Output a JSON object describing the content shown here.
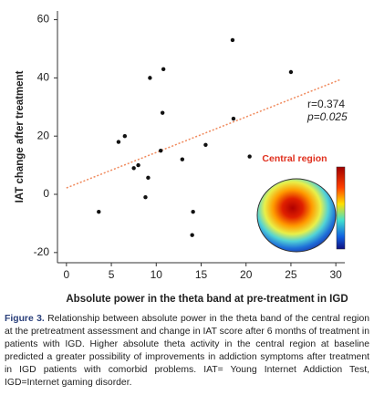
{
  "chart_data": {
    "type": "scatter",
    "y_label": "IAT change after treatment",
    "x_label": "Absolute power in the theta band at pre-treatment in IGD",
    "x": [
      3.6,
      5.8,
      6.5,
      7.5,
      8.0,
      9.1,
      8.8,
      9.3,
      10.8,
      10.7,
      10.5,
      12.9,
      14.1,
      14.0,
      15.5,
      18.5,
      18.6,
      20.4,
      25.0
    ],
    "values": [
      -6,
      18,
      20,
      9,
      10,
      5.7,
      -1,
      40,
      43,
      28,
      15,
      12,
      -6,
      -14,
      17,
      53,
      26,
      13,
      42
    ],
    "color": "#111111",
    "trend_line": {
      "x": [
        0,
        30.5
      ],
      "y": [
        2.2,
        39.4
      ],
      "color": "#f08a5d"
    },
    "xlim": [
      -1,
      31
    ],
    "ylim": [
      -23.5,
      63
    ],
    "xticks": [
      0,
      5,
      10,
      15,
      20,
      25,
      30
    ],
    "yticks": [
      -20,
      0,
      20,
      40,
      60
    ],
    "annotations": [
      "r=0.374",
      "p=0.025"
    ],
    "inset_title": "Central region"
  },
  "caption": {
    "label": "Figure 3.",
    "text": "Relationship between absolute power in the theta band of the central region at the pretreatment assessment and change in IAT score after 6 months of treatment in patients with IGD. Higher absolute theta activity in the central region at baseline predicted a greater possibility of improvements in addiction symptoms after treatment in IGD patients with comorbid problems. IAT= Young Internet Addiction Test, IGD=Internet gaming disorder."
  }
}
